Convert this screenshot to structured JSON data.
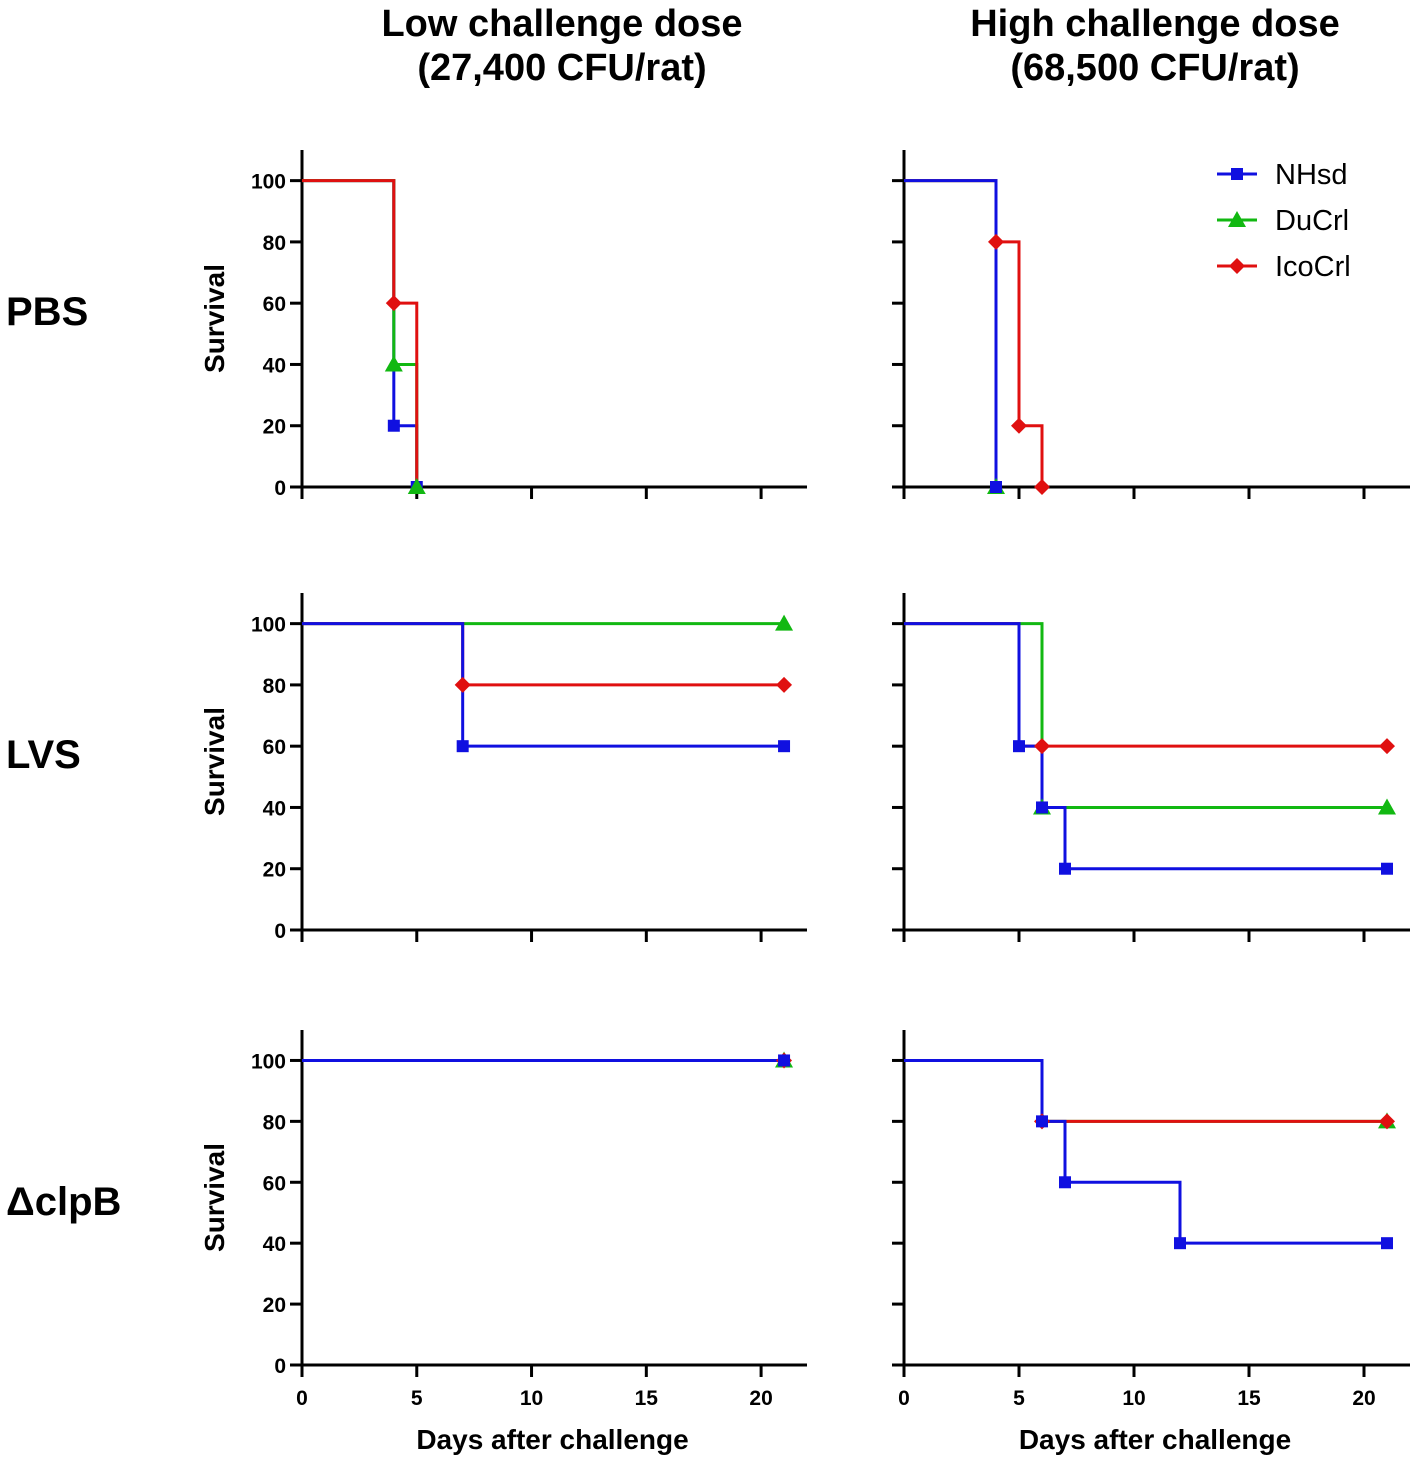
{
  "column_titles": [
    {
      "line1": "Low challenge dose",
      "line2": "(27,400 CFU/rat)"
    },
    {
      "line1": "High challenge dose",
      "line2": "(68,500 CFU/rat)"
    }
  ],
  "row_labels": [
    "PBS",
    "LVS",
    "ΔclpB"
  ],
  "legend": [
    {
      "name": "NHsd",
      "color": "#1010e0",
      "marker": "square"
    },
    {
      "name": "DuCrl",
      "color": "#12b812",
      "marker": "triangle"
    },
    {
      "name": "IcoCrl",
      "color": "#e01010",
      "marker": "diamond"
    }
  ],
  "chart_data": [
    {
      "type": "line",
      "step": true,
      "row": "PBS",
      "column": "Low challenge dose",
      "ylabel": "Survival",
      "xlabel": "",
      "xlim": [
        0,
        22
      ],
      "ylim": [
        0,
        110
      ],
      "xticks": [
        0,
        5,
        10,
        15,
        20
      ],
      "yticks": [
        0,
        20,
        40,
        60,
        80,
        100
      ],
      "series": [
        {
          "name": "NHsd",
          "x": [
            0,
            4,
            5
          ],
          "y": [
            100,
            20,
            0
          ],
          "marker_x": [
            4,
            5
          ]
        },
        {
          "name": "DuCrl",
          "x": [
            0,
            4,
            5
          ],
          "y": [
            100,
            40,
            0
          ],
          "marker_x": [
            4,
            5
          ]
        },
        {
          "name": "IcoCrl",
          "x": [
            0,
            4,
            5
          ],
          "y": [
            100,
            60,
            0
          ],
          "marker_x": [
            4
          ]
        }
      ]
    },
    {
      "type": "line",
      "step": true,
      "row": "PBS",
      "column": "High challenge dose",
      "ylabel": "",
      "xlabel": "",
      "xlim": [
        0,
        22
      ],
      "ylim": [
        0,
        110
      ],
      "xticks": [
        0,
        5,
        10,
        15,
        20
      ],
      "yticks": [
        0,
        20,
        40,
        60,
        80,
        100
      ],
      "series": [
        {
          "name": "DuCrl",
          "x": [
            0,
            4
          ],
          "y": [
            100,
            0
          ],
          "marker_x": [
            4
          ]
        },
        {
          "name": "IcoCrl",
          "x": [
            0,
            4,
            5,
            6
          ],
          "y": [
            100,
            80,
            20,
            0
          ],
          "marker_x": [
            4,
            5,
            6
          ]
        },
        {
          "name": "NHsd",
          "x": [
            0,
            4
          ],
          "y": [
            100,
            0
          ],
          "marker_x": [
            4
          ]
        }
      ]
    },
    {
      "type": "line",
      "step": true,
      "row": "LVS",
      "column": "Low challenge dose",
      "ylabel": "Survival",
      "xlabel": "",
      "xlim": [
        0,
        22
      ],
      "ylim": [
        0,
        110
      ],
      "xticks": [
        0,
        5,
        10,
        15,
        20
      ],
      "yticks": [
        0,
        20,
        40,
        60,
        80,
        100
      ],
      "series": [
        {
          "name": "DuCrl",
          "x": [
            0,
            21
          ],
          "y": [
            100,
            100
          ],
          "marker_x": [
            21
          ]
        },
        {
          "name": "IcoCrl",
          "x": [
            0,
            7,
            21
          ],
          "y": [
            100,
            80,
            80
          ],
          "marker_x": [
            7,
            21
          ]
        },
        {
          "name": "NHsd",
          "x": [
            0,
            7,
            21
          ],
          "y": [
            100,
            60,
            60
          ],
          "marker_x": [
            7,
            21
          ]
        }
      ]
    },
    {
      "type": "line",
      "step": true,
      "row": "LVS",
      "column": "High challenge dose",
      "ylabel": "",
      "xlabel": "",
      "xlim": [
        0,
        22
      ],
      "ylim": [
        0,
        110
      ],
      "xticks": [
        0,
        5,
        10,
        15,
        20
      ],
      "yticks": [
        0,
        20,
        40,
        60,
        80,
        100
      ],
      "series": [
        {
          "name": "DuCrl",
          "x": [
            0,
            6,
            21
          ],
          "y": [
            100,
            40,
            40
          ],
          "marker_x": [
            6,
            21
          ]
        },
        {
          "name": "IcoCrl",
          "x": [
            0,
            5,
            21
          ],
          "y": [
            100,
            60,
            60
          ],
          "marker_x": [
            6,
            21
          ]
        },
        {
          "name": "NHsd",
          "x": [
            0,
            5,
            6,
            7,
            21
          ],
          "y": [
            100,
            60,
            40,
            20,
            20
          ],
          "marker_x": [
            5,
            6,
            7,
            21
          ]
        }
      ]
    },
    {
      "type": "line",
      "step": true,
      "row": "ΔclpB",
      "column": "Low challenge dose",
      "ylabel": "Survival",
      "xlabel": "Days after challenge",
      "xlim": [
        0,
        22
      ],
      "ylim": [
        0,
        110
      ],
      "xticks": [
        0,
        5,
        10,
        15,
        20
      ],
      "yticks": [
        0,
        20,
        40,
        60,
        80,
        100
      ],
      "series": [
        {
          "name": "DuCrl",
          "x": [
            0,
            21
          ],
          "y": [
            100,
            100
          ],
          "marker_x": [
            21
          ]
        },
        {
          "name": "IcoCrl",
          "x": [
            0,
            21
          ],
          "y": [
            100,
            100
          ],
          "marker_x": [
            21
          ]
        },
        {
          "name": "NHsd",
          "x": [
            0,
            21
          ],
          "y": [
            100,
            100
          ],
          "marker_x": [
            21
          ]
        }
      ]
    },
    {
      "type": "line",
      "step": true,
      "row": "ΔclpB",
      "column": "High challenge dose",
      "ylabel": "",
      "xlabel": "Days after challenge",
      "xlim": [
        0,
        22
      ],
      "ylim": [
        0,
        110
      ],
      "xticks": [
        0,
        5,
        10,
        15,
        20
      ],
      "yticks": [
        0,
        20,
        40,
        60,
        80,
        100
      ],
      "series": [
        {
          "name": "DuCrl",
          "x": [
            0,
            6,
            21
          ],
          "y": [
            100,
            80,
            80
          ],
          "marker_x": [
            21
          ]
        },
        {
          "name": "IcoCrl",
          "x": [
            0,
            6,
            21
          ],
          "y": [
            100,
            80,
            80
          ],
          "marker_x": [
            6,
            21
          ]
        },
        {
          "name": "NHsd",
          "x": [
            0,
            6,
            7,
            12,
            21
          ],
          "y": [
            100,
            80,
            60,
            40,
            40
          ],
          "marker_x": [
            6,
            7,
            12,
            21
          ]
        }
      ]
    }
  ]
}
